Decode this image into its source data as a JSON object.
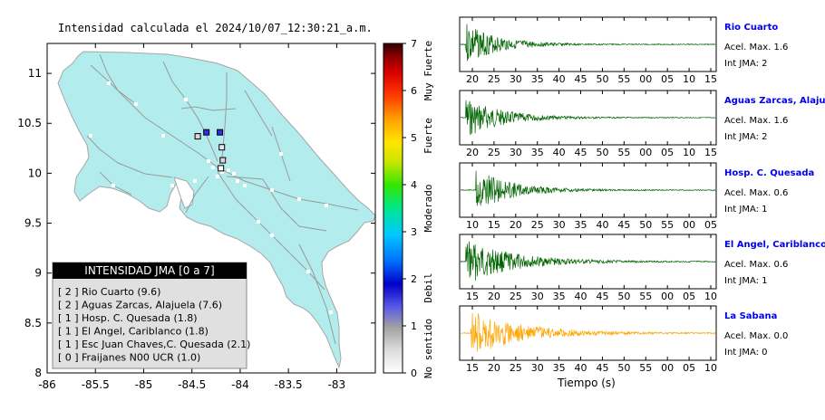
{
  "map": {
    "title": "Intensidad calculada el 2024/10/07_12:30:21_a.m.",
    "x_ticks": [
      "-86",
      "-85.5",
      "-85",
      "-84.5",
      "-84",
      "-83.5",
      "-83"
    ],
    "y_ticks": [
      "11",
      "10.5",
      "10",
      "9.5",
      "9",
      "8.5",
      "8"
    ],
    "land_color": "#b2ecec",
    "legend": {
      "title": "INTENSIDAD JMA [0 a 7]",
      "items": [
        {
          "level": "[ 2 ]",
          "label": "Rio Cuarto (9.6)"
        },
        {
          "level": "[ 2 ]",
          "label": "Aguas Zarcas, Alajuela (7.6)"
        },
        {
          "level": "[ 1 ]",
          "label": "Hosp. C. Quesada (1.8)"
        },
        {
          "level": "[ 1 ]",
          "label": "El Angel, Cariblanco (1.8)"
        },
        {
          "level": "[ 1 ]",
          "label": "Esc Juan Chaves,C. Quesada (2.1)"
        },
        {
          "level": "[ 0 ]",
          "label": "Fraijanes N00 UCR (1.0)"
        }
      ]
    },
    "stations": [
      {
        "lon": -84.21,
        "lat": 10.41,
        "intensity": 2,
        "color": "#3030e8"
      },
      {
        "lon": -84.35,
        "lat": 10.41,
        "intensity": 2,
        "color": "#3030e8"
      },
      {
        "lon": -84.44,
        "lat": 10.37,
        "intensity": 1,
        "color": "#d8d8d8"
      },
      {
        "lon": -84.19,
        "lat": 10.26,
        "intensity": 1,
        "color": "#e8e8e8"
      },
      {
        "lon": -84.18,
        "lat": 10.13,
        "intensity": 1,
        "color": "#d8d8d8"
      },
      {
        "lon": -84.2,
        "lat": 10.05,
        "intensity": 0,
        "color": "#ffffff"
      }
    ]
  },
  "colorbar": {
    "ticks": [
      "0",
      "1",
      "2",
      "3",
      "4",
      "5",
      "6",
      "7"
    ],
    "labels": [
      "No sentido",
      "Debil",
      "Moderado",
      "Fuerte",
      "Muy Fuerte"
    ]
  },
  "waveforms": {
    "xlabel": "Tiempo (s)",
    "panels": [
      {
        "name": "Rio Cuarto",
        "acel": "Acel. Max. 1.6",
        "jma": "Int JMA: 2",
        "ticks": [
          "20",
          "25",
          "30",
          "35",
          "40",
          "45",
          "50",
          "55",
          "00",
          "05",
          "10",
          "15"
        ],
        "color": "#006400",
        "onset": 0.02,
        "amp": 0.85,
        "decay": 0.12,
        "seed": 3
      },
      {
        "name": "Aguas Zarcas, Alajuela",
        "acel": "Acel. Max. 1.6",
        "jma": "Int JMA: 2",
        "ticks": [
          "20",
          "25",
          "30",
          "35",
          "40",
          "45",
          "50",
          "55",
          "00",
          "05",
          "10",
          "15"
        ],
        "color": "#006400",
        "onset": 0.02,
        "amp": 0.8,
        "decay": 0.14,
        "seed": 7
      },
      {
        "name": "Hosp. C. Quesada",
        "acel": "Acel. Max. 0.6",
        "jma": "Int JMA: 1",
        "ticks": [
          "10",
          "15",
          "20",
          "25",
          "30",
          "35",
          "40",
          "45",
          "50",
          "55",
          "00",
          "05"
        ],
        "color": "#006400",
        "onset": 0.06,
        "amp": 0.9,
        "decay": 0.13,
        "seed": 11
      },
      {
        "name": "El Angel, Cariblanco",
        "acel": "Acel. Max. 0.6",
        "jma": "Int JMA: 1",
        "ticks": [
          "15",
          "20",
          "25",
          "30",
          "35",
          "40",
          "45",
          "50",
          "55",
          "00",
          "05",
          "10"
        ],
        "color": "#006400",
        "onset": 0.02,
        "amp": 0.9,
        "decay": 0.18,
        "seed": 17
      },
      {
        "name": "La Sabana",
        "acel": "Acel. Max. 0.0",
        "jma": "Int JMA: 0",
        "ticks": [
          "15",
          "20",
          "25",
          "30",
          "35",
          "40",
          "45",
          "50",
          "55",
          "00",
          "05",
          "10"
        ],
        "color": "#ffa500",
        "onset": 0.04,
        "amp": 0.9,
        "decay": 0.2,
        "seed": 23
      }
    ]
  }
}
